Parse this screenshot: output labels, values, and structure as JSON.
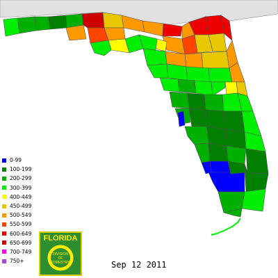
{
  "map": {
    "date": "Sep 12 2011",
    "colors": {
      "water": "#ffffff",
      "neighbor_land": "#e0e0e0",
      "border": "#606060"
    }
  },
  "legend": {
    "items": [
      {
        "label": "0-99",
        "color": "#0000ff"
      },
      {
        "label": "100-199",
        "color": "#007f00"
      },
      {
        "label": "200-299",
        "color": "#00b000"
      },
      {
        "label": "300-399",
        "color": "#00ee00"
      },
      {
        "label": "400-449",
        "color": "#ffff00"
      },
      {
        "label": "450-499",
        "color": "#e8c800"
      },
      {
        "label": "500-549",
        "color": "#ff9900"
      },
      {
        "label": "550-599",
        "color": "#ff4400"
      },
      {
        "label": "600-649",
        "color": "#ee0000"
      },
      {
        "label": "650-699",
        "color": "#cc0000"
      },
      {
        "label": "700-749",
        "color": "#ff00ff"
      },
      {
        "label": "750+",
        "color": "#aa44cc"
      }
    ]
  },
  "logo": {
    "line1": "FLORIDA",
    "line2": "DIVISION",
    "line3": "OF",
    "line4": "FORESTRY"
  }
}
